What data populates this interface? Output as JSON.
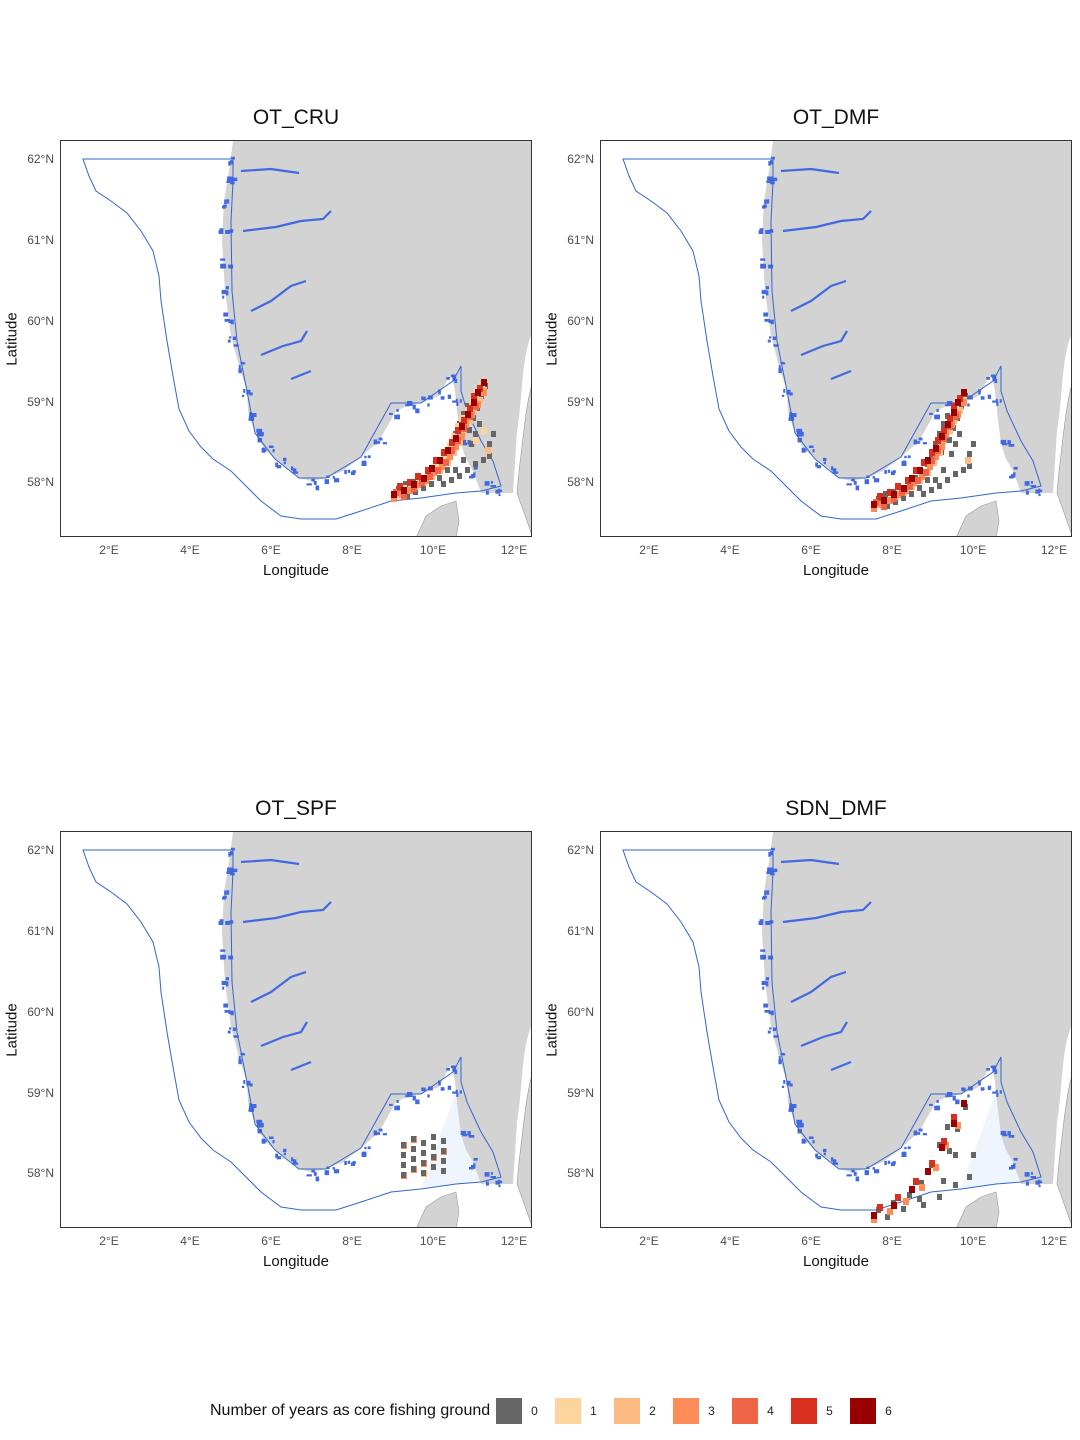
{
  "legend": {
    "title": "Number of years as core fishing ground",
    "items": [
      {
        "label": "0",
        "color": "#666666"
      },
      {
        "label": "1",
        "color": "#fdd49e"
      },
      {
        "label": "2",
        "color": "#fdbb84"
      },
      {
        "label": "3",
        "color": "#fc8d59"
      },
      {
        "label": "4",
        "color": "#ef6548"
      },
      {
        "label": "5",
        "color": "#d7301f"
      },
      {
        "label": "6",
        "color": "#990000"
      }
    ]
  },
  "axes": {
    "xlabel": "Longitude",
    "ylabel": "Latitude",
    "xticks": [
      "2°E",
      "4°E",
      "6°E",
      "8°E",
      "10°E",
      "12°E"
    ],
    "yticks": [
      "62°N",
      "61°N",
      "60°N",
      "59°N",
      "58°N"
    ]
  },
  "colors": {
    "land": "#d3d3d3",
    "coastline": "#4169e1",
    "boundary": "#3366cc",
    "water_highlight": "#eef5fc"
  },
  "panels": [
    {
      "title": "OT_CRU"
    },
    {
      "title": "OT_DMF"
    },
    {
      "title": "OT_SPF"
    },
    {
      "title": "SDN_DMF"
    }
  ]
}
